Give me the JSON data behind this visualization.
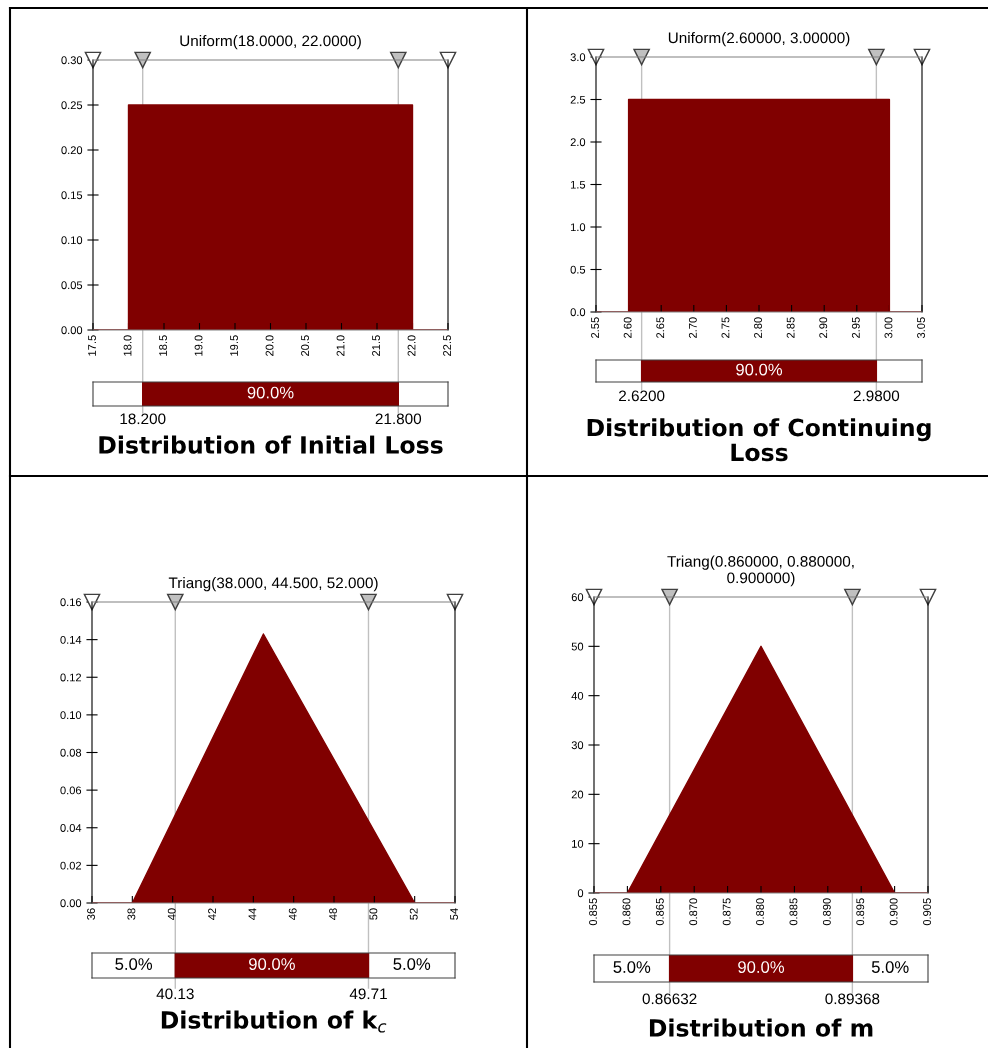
{
  "chart_data": [
    {
      "type": "area",
      "title": "Uniform(18.0000, 22.0000)",
      "series": [
        {
          "color": "#800000",
          "x": [
            17.5,
            18.0,
            18.0,
            22.0,
            22.0,
            22.5
          ],
          "values": [
            0,
            0,
            0.25,
            0.25,
            0,
            0
          ]
        }
      ],
      "xlim": [
        17.5,
        22.5
      ],
      "xticks": [
        17.5,
        {
          "value": 18,
          "label": "18.0"
        },
        18.5,
        {
          "value": 19,
          "label": "19.0"
        },
        19.5,
        {
          "value": 20,
          "label": "20.0"
        },
        20.5,
        {
          "value": 21,
          "label": "21.0"
        },
        21.5,
        {
          "value": 22,
          "label": "22.0"
        },
        22.5
      ],
      "ylim": [
        0,
        0.3
      ],
      "yticks": [
        {
          "value": 0,
          "label": "0.00"
        },
        {
          "value": 0.05,
          "label": "0.05"
        },
        {
          "value": 0.1,
          "label": "0.10"
        },
        {
          "value": 0.15,
          "label": "0.15"
        },
        {
          "value": 0.2,
          "label": "0.20"
        },
        {
          "value": 0.25,
          "label": "0.25"
        },
        {
          "value": 0.3,
          "label": "0.30"
        }
      ],
      "ref_lines": [
        {
          "axis": "x",
          "value": 18.2,
          "label": "18.200",
          "color": "#c0c0c0"
        },
        {
          "axis": "x",
          "value": 21.8,
          "label": "21.800",
          "color": "#c0c0c0"
        }
      ],
      "annotations": [
        "90.0%",
        "Distribution of Initial Loss"
      ]
    },
    {
      "type": "area",
      "title": "Uniform(2.60000, 3.00000)",
      "series": [
        {
          "color": "#800000",
          "x": [
            2.55,
            2.6,
            2.6,
            3.0,
            3.0,
            3.05
          ],
          "values": [
            0,
            0,
            2.5,
            2.5,
            0,
            0
          ]
        }
      ],
      "xlim": [
        2.55,
        3.05
      ],
      "xticks": [
        2.55,
        {
          "value": 2.6,
          "label": "2.60"
        },
        2.65,
        {
          "value": 2.7,
          "label": "2.70"
        },
        2.75,
        {
          "value": 2.8,
          "label": "2.80"
        },
        2.85,
        {
          "value": 2.9,
          "label": "2.90"
        },
        2.95,
        {
          "value": 3.0,
          "label": "3.00"
        },
        3.05
      ],
      "ylim": [
        0,
        3.0
      ],
      "yticks": [
        {
          "value": 0,
          "label": "0.0"
        },
        0.5,
        {
          "value": 1,
          "label": "1.0"
        },
        1.5,
        {
          "value": 2,
          "label": "2.0"
        },
        2.5,
        {
          "value": 3,
          "label": "3.0"
        }
      ],
      "ref_lines": [
        {
          "axis": "x",
          "value": 2.62,
          "label": "2.6200",
          "color": "#c0c0c0"
        },
        {
          "axis": "x",
          "value": 2.98,
          "label": "2.9800",
          "color": "#c0c0c0"
        }
      ],
      "annotations": [
        "90.0%",
        "Distribution of Continuing Loss"
      ]
    },
    {
      "type": "area",
      "title": "Triang(38.000, 44.500, 52.000)",
      "series": [
        {
          "color": "#800000",
          "x": [
            36,
            38,
            44.5,
            52,
            54
          ],
          "values": [
            0,
            0,
            0.143,
            0,
            0
          ]
        }
      ],
      "xlim": [
        36,
        54
      ],
      "xticks": [
        36,
        38,
        40,
        42,
        44,
        46,
        48,
        50,
        52,
        54
      ],
      "ylim": [
        0,
        0.16
      ],
      "yticks": [
        {
          "value": 0,
          "label": "0.00"
        },
        {
          "value": 0.02,
          "label": "0.02"
        },
        {
          "value": 0.04,
          "label": "0.04"
        },
        {
          "value": 0.06,
          "label": "0.06"
        },
        {
          "value": 0.08,
          "label": "0.08"
        },
        {
          "value": 0.1,
          "label": "0.10"
        },
        {
          "value": 0.12,
          "label": "0.12"
        },
        {
          "value": 0.14,
          "label": "0.14"
        },
        {
          "value": 0.16,
          "label": "0.16"
        }
      ],
      "ref_lines": [
        {
          "axis": "x",
          "value": 40.13,
          "label": "40.13",
          "color": "#c0c0c0"
        },
        {
          "axis": "x",
          "value": 49.71,
          "label": "49.71",
          "color": "#c0c0c0"
        }
      ],
      "annotations": [
        "5.0%",
        "90.0%",
        "5.0%",
        "Distribution of k$_{c}$"
      ]
    },
    {
      "type": "area",
      "title": "Triang(0.860000, 0.880000, 0.900000)",
      "series": [
        {
          "color": "#800000",
          "x": [
            0.855,
            0.86,
            0.88,
            0.9,
            0.905
          ],
          "values": [
            0,
            0,
            50,
            0,
            0
          ]
        }
      ],
      "xlim": [
        0.855,
        0.905
      ],
      "xticks": [
        0.855,
        {
          "value": 0.86,
          "label": "0.860"
        },
        0.865,
        {
          "value": 0.87,
          "label": "0.870"
        },
        0.875,
        {
          "value": 0.88,
          "label": "0.880"
        },
        0.885,
        {
          "value": 0.89,
          "label": "0.890"
        },
        0.895,
        {
          "value": 0.9,
          "label": "0.900"
        },
        0.905
      ],
      "ylim": [
        0,
        60
      ],
      "yticks": [
        0,
        10,
        20,
        30,
        40,
        50,
        60
      ],
      "ref_lines": [
        {
          "axis": "x",
          "value": 0.86632,
          "label": "0.86632",
          "color": "#c0c0c0"
        },
        {
          "axis": "x",
          "value": 0.89368,
          "label": "0.89368",
          "color": "#c0c0c0"
        }
      ],
      "annotations": [
        "5.0%",
        "90.0%",
        "5.0%",
        "Distribution of m"
      ]
    }
  ]
}
